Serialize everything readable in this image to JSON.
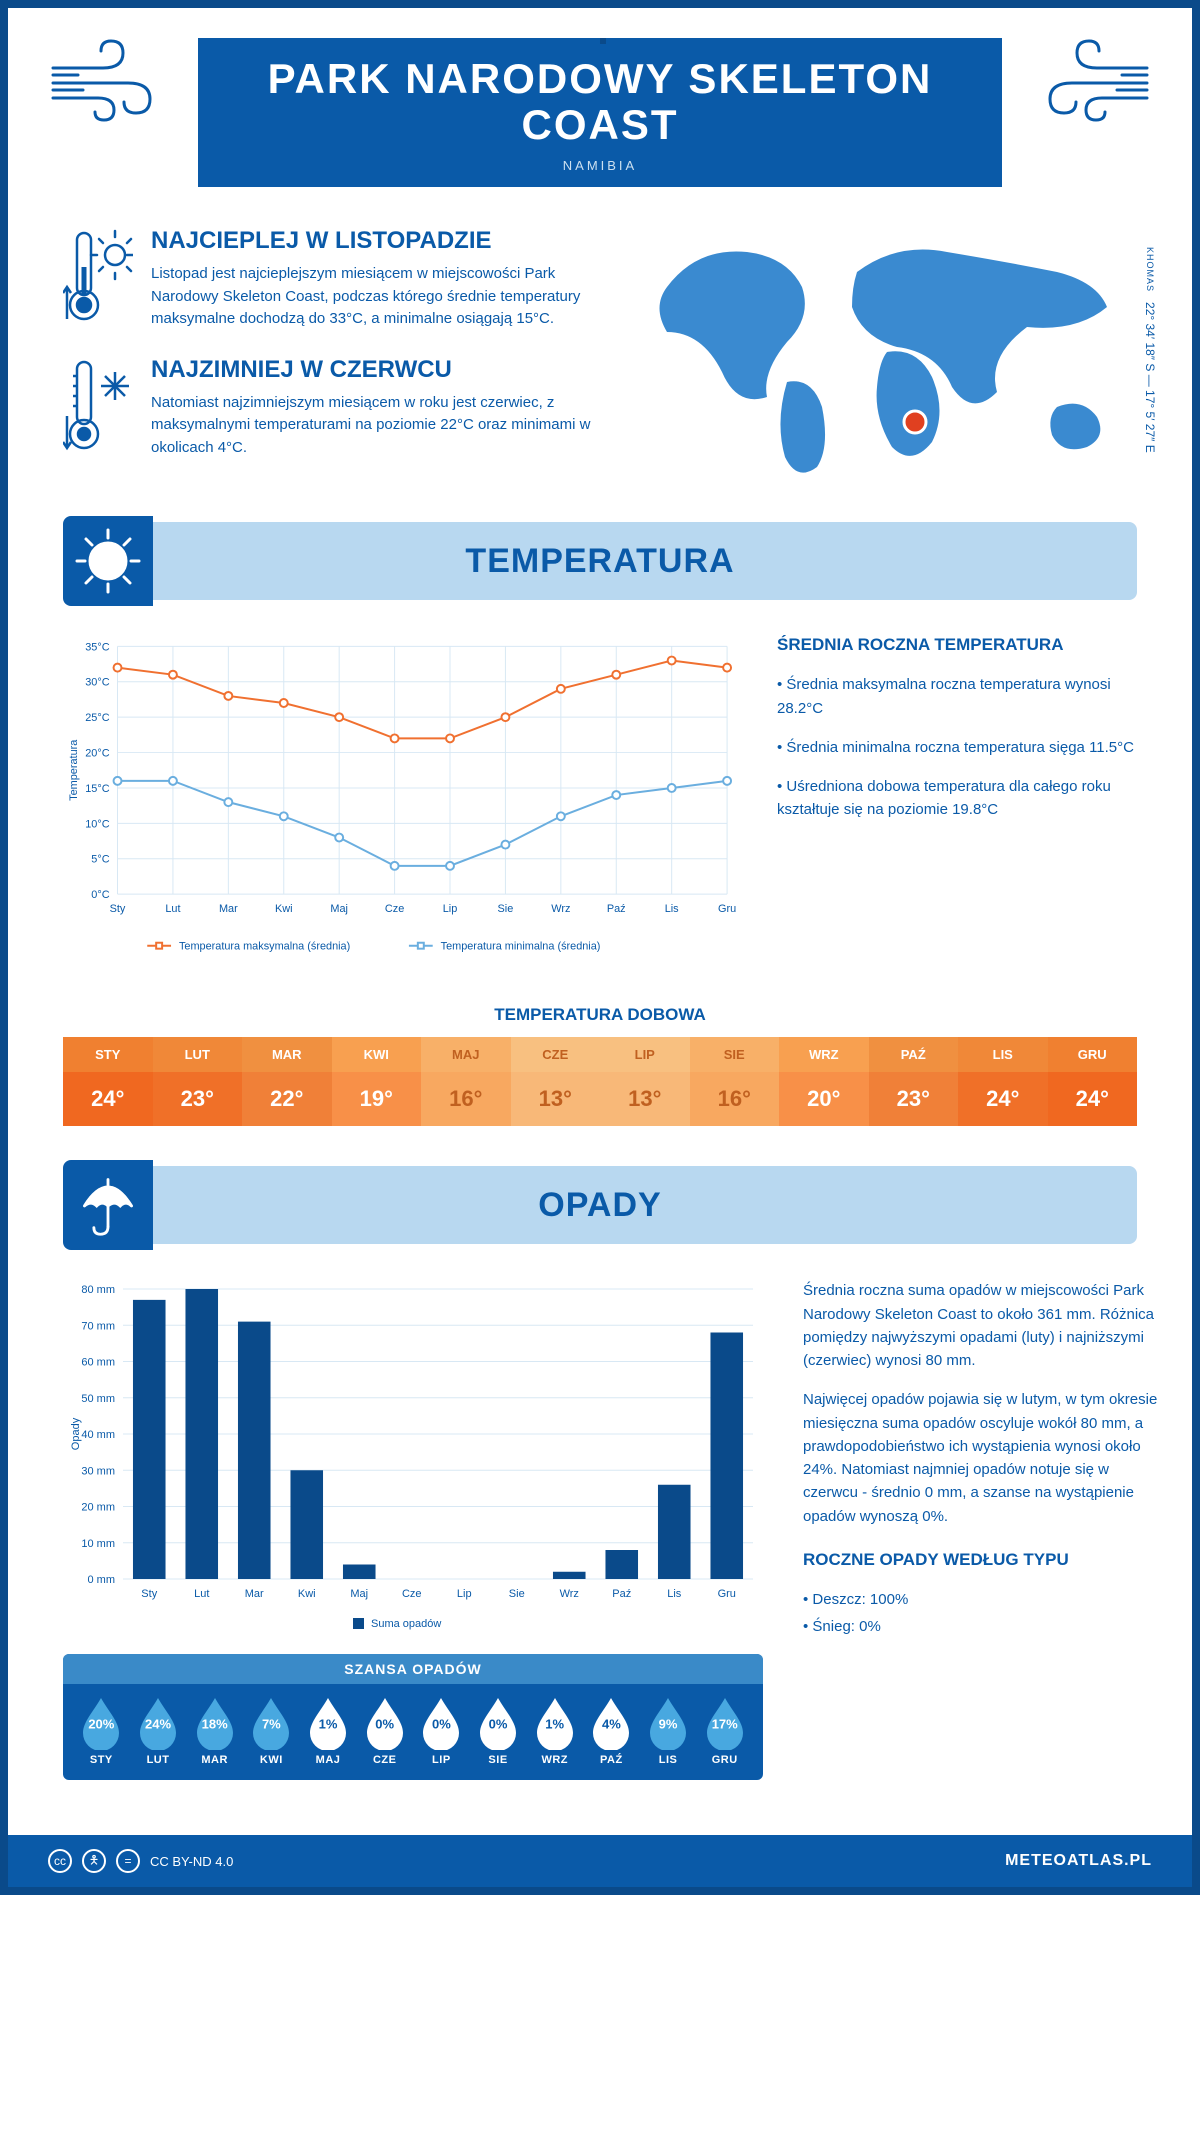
{
  "header": {
    "title": "PARK NARODOWY SKELETON COAST",
    "subtitle": "NAMIBIA"
  },
  "coords": {
    "lat": "22° 34′ 18″ S — 17° 5′ 27″ E",
    "region": "KHOMAS"
  },
  "facts": {
    "warm": {
      "title": "NAJCIEPLEJ W LISTOPADZIE",
      "text": "Listopad jest najcieplejszym miesiącem w miejscowości Park Narodowy Skeleton Coast, podczas którego średnie temperatury maksymalne dochodzą do 33°C, a minimalne osiągają 15°C."
    },
    "cold": {
      "title": "NAJZIMNIEJ W CZERWCU",
      "text": "Natomiast najzimniejszym miesiącem w roku jest czerwiec, z maksymalnymi temperaturami na poziomie 22°C oraz minimami w okolicach 4°C."
    }
  },
  "sections": {
    "temp": "TEMPERATURA",
    "precip": "OPADY"
  },
  "months": [
    "Sty",
    "Lut",
    "Mar",
    "Kwi",
    "Maj",
    "Cze",
    "Lip",
    "Sie",
    "Wrz",
    "Paź",
    "Lis",
    "Gru"
  ],
  "monthsUpper": [
    "STY",
    "LUT",
    "MAR",
    "KWI",
    "MAJ",
    "CZE",
    "LIP",
    "SIE",
    "WRZ",
    "PAŹ",
    "LIS",
    "GRU"
  ],
  "tempChart": {
    "type": "line",
    "ylabel": "Temperatura",
    "ylim": [
      0,
      35
    ],
    "ytick_step": 5,
    "ytick_suffix": "°C",
    "grid_color": "#d8e8f4",
    "series": [
      {
        "name": "Temperatura maksymalna (średnia)",
        "color": "#f07030",
        "values": [
          32,
          31,
          28,
          27,
          25,
          22,
          22,
          25,
          29,
          31,
          33,
          32
        ]
      },
      {
        "name": "Temperatura minimalna (średnia)",
        "color": "#6aaedf",
        "values": [
          16,
          16,
          13,
          11,
          8,
          4,
          4,
          7,
          11,
          14,
          15,
          16
        ]
      }
    ],
    "marker_size": 4,
    "line_width": 2
  },
  "tempSide": {
    "title": "ŚREDNIA ROCZNA TEMPERATURA",
    "bullets": [
      "• Średnia maksymalna roczna temperatura wynosi 28.2°C",
      "• Średnia minimalna roczna temperatura sięga 11.5°C",
      "• Uśredniona dobowa temperatura dla całego roku kształtuje się na poziomie 19.8°C"
    ]
  },
  "dailyTemp": {
    "title": "TEMPERATURA DOBOWA",
    "values": [
      "24°",
      "23°",
      "22°",
      "19°",
      "16°",
      "13°",
      "13°",
      "16°",
      "20°",
      "23°",
      "24°",
      "24°"
    ],
    "head_colors": [
      "#f08030",
      "#f08838",
      "#f09040",
      "#f8a050",
      "#f8b068",
      "#f8c080",
      "#f8c080",
      "#f8b068",
      "#f8a050",
      "#f09040",
      "#f08838",
      "#f08030"
    ],
    "val_colors": [
      "#f06820",
      "#f07028",
      "#f08038",
      "#f89048",
      "#f8a860",
      "#f8b878",
      "#f8b878",
      "#f8a860",
      "#f89048",
      "#f08038",
      "#f07028",
      "#f06820"
    ],
    "text_color": "#ffffff",
    "mid_text_color": "#c06020"
  },
  "precipChart": {
    "type": "bar",
    "ylabel": "Opady",
    "ylim": [
      0,
      80
    ],
    "ytick_step": 10,
    "ytick_suffix": " mm",
    "bar_color": "#0a4a8a",
    "legend": "Suma opadów",
    "values": [
      77,
      80,
      71,
      30,
      4,
      0,
      0,
      0,
      2,
      8,
      26,
      68
    ]
  },
  "precipSide": {
    "p1": "Średnia roczna suma opadów w miejscowości Park Narodowy Skeleton Coast to około 361 mm. Różnica pomiędzy najwyższymi opadami (luty) i najniższymi (czerwiec) wynosi 80 mm.",
    "p2": "Najwięcej opadów pojawia się w lutym, w tym okresie miesięczna suma opadów oscyluje wokół 80 mm, a prawdopodobieństwo ich wystąpienia wynosi około 24%. Natomiast najmniej opadów notuje się w czerwcu - średnio 0 mm, a szanse na wystąpienie opadów wynoszą 0%.",
    "typeTitle": "ROCZNE OPADY WEDŁUG TYPU",
    "types": [
      "• Deszcz: 100%",
      "• Śnieg: 0%"
    ]
  },
  "chance": {
    "title": "SZANSA OPADÓW",
    "values": [
      "20%",
      "24%",
      "18%",
      "7%",
      "1%",
      "0%",
      "0%",
      "0%",
      "1%",
      "4%",
      "9%",
      "17%"
    ],
    "filled": [
      true,
      true,
      true,
      true,
      false,
      false,
      false,
      false,
      false,
      false,
      true,
      true
    ],
    "fill_color": "#48a8e0",
    "empty_fill": "#ffffff",
    "text_on_fill": "#ffffff",
    "text_on_empty": "#0a5aa8"
  },
  "footer": {
    "license": "CC BY-ND 4.0",
    "site": "METEOATLAS.PL"
  },
  "palette": {
    "primary": "#0a5aa8",
    "dark": "#0a4a8a",
    "lightbar": "#b8d8f0"
  }
}
